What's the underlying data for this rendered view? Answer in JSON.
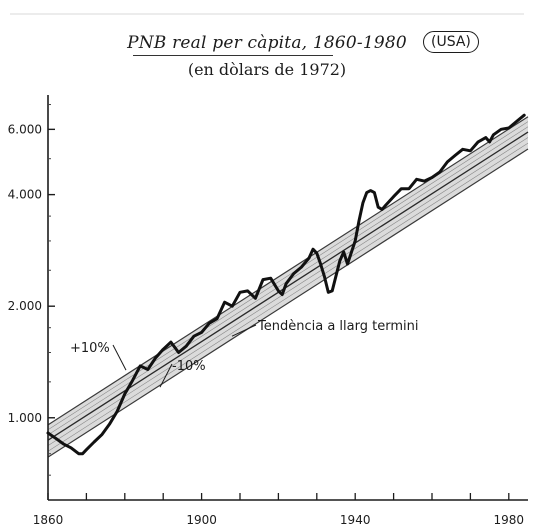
{
  "title": {
    "main": "PNB real per càpita, 1860-1980",
    "badge": "(USA)",
    "subtitle": "(en dòlars de 1972)"
  },
  "chart_data": {
    "type": "line",
    "title": "PNB real per càpita, 1860-1980",
    "subtitle": "(en dòlars de 1972)",
    "xlabel": "",
    "ylabel": "",
    "y_scale": "log",
    "xlim": [
      1860,
      1985
    ],
    "ylim": [
      600,
      7200
    ],
    "x_ticks": [
      1860,
      1900,
      1940,
      1980
    ],
    "y_ticks": [
      1000,
      2000,
      4000,
      6000
    ],
    "y_tick_labels": [
      "1.000",
      "2.000",
      "4.000",
      "6.000"
    ],
    "grid": false,
    "series": [
      {
        "x": [
          1860,
          1862,
          1864,
          1866,
          1868,
          1869,
          1870,
          1872,
          1874,
          1876,
          1878,
          1880,
          1882,
          1884,
          1886,
          1888,
          1890,
          1892,
          1894,
          1896,
          1898,
          1900,
          1902,
          1904,
          1906,
          1908,
          1910,
          1912,
          1914,
          1916,
          1918,
          1920,
          1921,
          1922,
          1924,
          1926,
          1928,
          1929,
          1930,
          1931,
          1932,
          1933,
          1934,
          1936,
          1937,
          1938,
          1940,
          1941,
          1942,
          1943,
          1944,
          1945,
          1946,
          1947,
          1948,
          1950,
          1952,
          1954,
          1956,
          1958,
          1960,
          1962,
          1964,
          1966,
          1968,
          1970,
          1972,
          1974,
          1975,
          1976,
          1978,
          1980,
          1982,
          1984
        ],
        "values": [
          910,
          880,
          850,
          830,
          800,
          800,
          820,
          860,
          900,
          960,
          1040,
          1160,
          1260,
          1380,
          1350,
          1450,
          1530,
          1600,
          1500,
          1560,
          1660,
          1700,
          1800,
          1850,
          2050,
          2000,
          2180,
          2200,
          2100,
          2360,
          2380,
          2200,
          2150,
          2300,
          2450,
          2550,
          2700,
          2850,
          2780,
          2600,
          2400,
          2180,
          2200,
          2650,
          2800,
          2600,
          3000,
          3400,
          3800,
          4050,
          4100,
          4050,
          3700,
          3650,
          3750,
          3950,
          4150,
          4150,
          4400,
          4350,
          4450,
          4600,
          4900,
          5100,
          5300,
          5250,
          5550,
          5700,
          5550,
          5800,
          6000,
          6050,
          6300,
          6550
        ]
      },
      {
        "name": "Tendència a llarg termini",
        "x": [
          1860,
          1985
        ],
        "values": [
          870,
          5900
        ]
      }
    ],
    "bands": [
      {
        "name": "+10%",
        "factor": 1.1
      },
      {
        "name": "-10%",
        "factor": 0.9
      }
    ],
    "annotations": [
      "Tendència a llarg termini",
      "+10%",
      "-10%"
    ]
  }
}
